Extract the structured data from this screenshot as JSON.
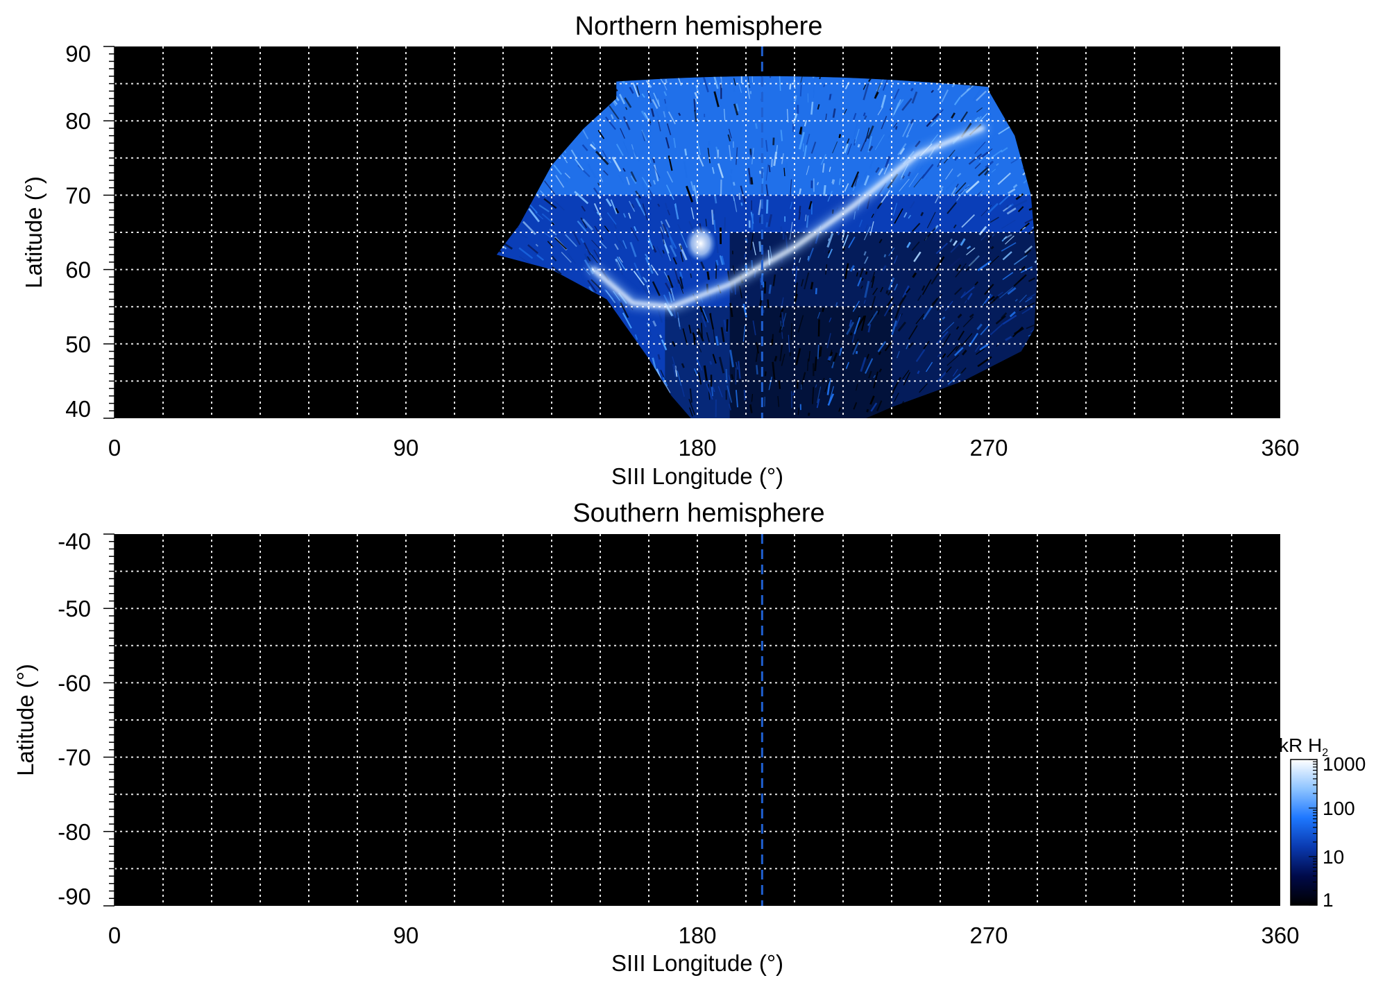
{
  "chart_data": [
    {
      "type": "heatmap",
      "title": "Northern hemisphere",
      "xlabel": "SIII Longitude (°)",
      "ylabel": "Latitude (°)",
      "xlim": [
        0,
        360
      ],
      "ylim": [
        40,
        90
      ],
      "xticks": [
        "0",
        "90",
        "180",
        "270",
        "360"
      ],
      "yticks": [
        "40",
        "50",
        "60",
        "70",
        "80",
        "90"
      ],
      "grid": true,
      "background_color": "#000000",
      "reference_longitude": 200,
      "reference_line_color": "#1f5fd0",
      "coverage_region": {
        "lon_range": [
          118,
          285
        ],
        "lat_range": [
          40,
          86
        ]
      },
      "features": [
        {
          "kind": "main_oval_arc",
          "points": [
            [
              148,
              60
            ],
            [
              160,
              55.5
            ],
            [
              172,
              55
            ],
            [
              190,
              58
            ],
            [
              210,
              63
            ],
            [
              228,
              68.5
            ],
            [
              248,
              75.5
            ],
            [
              268,
              79
            ]
          ]
        },
        {
          "kind": "bright_spot",
          "lon": 181,
          "lat": 63.5
        }
      ]
    },
    {
      "type": "heatmap",
      "title": "Southern hemisphere",
      "xlabel": "SIII Longitude (°)",
      "ylabel": "Latitude (°)",
      "xlim": [
        0,
        360
      ],
      "ylim": [
        -90,
        -40
      ],
      "xticks": [
        "0",
        "90",
        "180",
        "270",
        "360"
      ],
      "yticks": [
        "-40",
        "-50",
        "-60",
        "-70",
        "-80",
        "-90"
      ],
      "grid": true,
      "background_color": "#000000",
      "reference_longitude": 200,
      "reference_line_color": "#1f5fd0",
      "coverage_region": null
    }
  ],
  "colorbar": {
    "title_main": "kR H",
    "title_sub": "2",
    "scale": "log",
    "range": [
      1,
      1000
    ],
    "tick_labels": [
      "1",
      "10",
      "100",
      "1000"
    ],
    "colors": [
      "#000000",
      "#000a4a",
      "#0a3ab0",
      "#1e78ff",
      "#8ec4ff",
      "#ffffff"
    ]
  }
}
